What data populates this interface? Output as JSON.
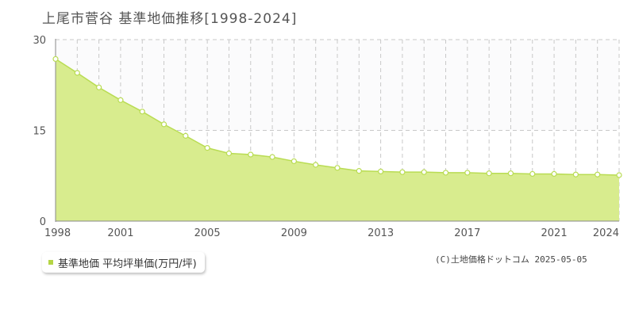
{
  "title": "上尾市菅谷 基準地価推移[1998-2024]",
  "copyright": "(C)土地価格ドットコム 2025-05-05",
  "colors": {
    "area_fill": "#d8ec8e",
    "line": "#b9dc53",
    "marker_fill": "#ffffff",
    "marker_stroke": "#b9dc53",
    "grid": "#c8c8c8",
    "plot_bg": "#ffffff",
    "upper_band": "#fbfbfc",
    "axis": "#888888",
    "legend_swatch": "#b5d545"
  },
  "chart_data": {
    "type": "area",
    "title": "上尾市菅谷 基準地価推移[1998-2024]",
    "xlabel": "",
    "ylabel": "",
    "xlim": [
      1998,
      2024
    ],
    "ylim": [
      0,
      30
    ],
    "y_ticks": [
      "0",
      "15",
      "30"
    ],
    "x_tick_labels": [
      "1998",
      "2001",
      "2005",
      "2009",
      "2013",
      "2017",
      "2021",
      "2024"
    ],
    "grid": true,
    "legend_position": "bottom-left",
    "series": [
      {
        "name": "基準地価 平均坪単価(万円/坪)",
        "x": [
          1998,
          1999,
          2000,
          2001,
          2002,
          2003,
          2004,
          2005,
          2006,
          2007,
          2008,
          2009,
          2010,
          2011,
          2012,
          2013,
          2014,
          2015,
          2016,
          2017,
          2018,
          2019,
          2020,
          2021,
          2022,
          2023,
          2024
        ],
        "values": [
          26.8,
          24.5,
          22.1,
          20.0,
          18.1,
          16.0,
          14.1,
          12.1,
          11.2,
          11.0,
          10.6,
          9.9,
          9.3,
          8.8,
          8.3,
          8.2,
          8.1,
          8.1,
          8.0,
          8.0,
          7.9,
          7.9,
          7.8,
          7.8,
          7.7,
          7.7,
          7.6
        ]
      }
    ]
  }
}
